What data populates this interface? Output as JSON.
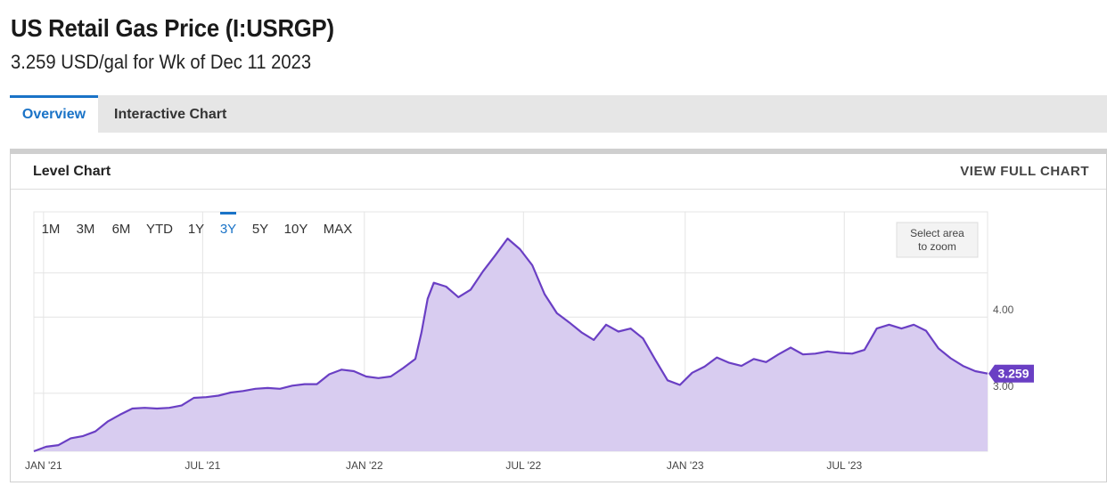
{
  "header": {
    "title": "US Retail Gas Price (I:USRGP)",
    "subtitle": "3.259 USD/gal for Wk of Dec 11 2023"
  },
  "tabs": [
    {
      "label": "Overview",
      "active": true
    },
    {
      "label": "Interactive Chart",
      "active": false
    }
  ],
  "card": {
    "title": "Level Chart",
    "view_full_label": "VIEW FULL CHART"
  },
  "range_buttons": [
    {
      "label": "1M",
      "active": false
    },
    {
      "label": "3M",
      "active": false
    },
    {
      "label": "6M",
      "active": false
    },
    {
      "label": "YTD",
      "active": false
    },
    {
      "label": "1Y",
      "active": false
    },
    {
      "label": "3Y",
      "active": true
    },
    {
      "label": "5Y",
      "active": false
    },
    {
      "label": "10Y",
      "active": false
    },
    {
      "label": "MAX",
      "active": false
    }
  ],
  "zoom_hint": {
    "line1": "Select area",
    "line2": "to zoom"
  },
  "colors": {
    "line": "#6a3fc4",
    "fill": "#d8ccf0",
    "accent": "#1a73c7",
    "badge": "#6a3fc4",
    "grid": "#e4e4e4"
  },
  "chart_data": {
    "type": "area",
    "title": "US Retail Gas Price (I:USRGP)",
    "unit": "USD/gal",
    "x_start": "2020-12-21",
    "x_end": "2023-12-11",
    "ylim": [
      2.24,
      5.38
    ],
    "y_ticks": [
      3.0,
      4.0
    ],
    "x_ticks": [
      {
        "date": "2021-01-01",
        "label": "JAN '21"
      },
      {
        "date": "2021-07-01",
        "label": "JUL '21"
      },
      {
        "date": "2022-01-01",
        "label": "JAN '22"
      },
      {
        "date": "2022-07-01",
        "label": "JUL '22"
      },
      {
        "date": "2023-01-01",
        "label": "JAN '23"
      },
      {
        "date": "2023-07-01",
        "label": "JUL '23"
      }
    ],
    "grid": true,
    "last_value_label": "3.259",
    "series": [
      {
        "values": [
          [
            "2020-12-21",
            2.24
          ],
          [
            "2021-01-04",
            2.3
          ],
          [
            "2021-01-18",
            2.32
          ],
          [
            "2021-02-01",
            2.41
          ],
          [
            "2021-02-15",
            2.44
          ],
          [
            "2021-03-01",
            2.5
          ],
          [
            "2021-03-15",
            2.63
          ],
          [
            "2021-03-29",
            2.72
          ],
          [
            "2021-04-12",
            2.8
          ],
          [
            "2021-04-26",
            2.81
          ],
          [
            "2021-05-10",
            2.8
          ],
          [
            "2021-05-24",
            2.81
          ],
          [
            "2021-06-07",
            2.84
          ],
          [
            "2021-06-21",
            2.94
          ],
          [
            "2021-07-05",
            2.95
          ],
          [
            "2021-07-19",
            2.97
          ],
          [
            "2021-08-02",
            3.01
          ],
          [
            "2021-08-16",
            3.03
          ],
          [
            "2021-08-30",
            3.06
          ],
          [
            "2021-09-13",
            3.07
          ],
          [
            "2021-09-27",
            3.06
          ],
          [
            "2021-10-11",
            3.1
          ],
          [
            "2021-10-25",
            3.12
          ],
          [
            "2021-11-08",
            3.12
          ],
          [
            "2021-11-22",
            3.25
          ],
          [
            "2021-12-06",
            3.31
          ],
          [
            "2021-12-20",
            3.29
          ],
          [
            "2022-01-03",
            3.22
          ],
          [
            "2022-01-17",
            3.2
          ],
          [
            "2022-01-31",
            3.22
          ],
          [
            "2022-02-14",
            3.33
          ],
          [
            "2022-02-28",
            3.45
          ],
          [
            "2022-03-07",
            3.8
          ],
          [
            "2022-03-14",
            4.24
          ],
          [
            "2022-03-21",
            4.45
          ],
          [
            "2022-04-04",
            4.4
          ],
          [
            "2022-04-18",
            4.26
          ],
          [
            "2022-05-02",
            4.36
          ],
          [
            "2022-05-16",
            4.6
          ],
          [
            "2022-05-30",
            4.81
          ],
          [
            "2022-06-13",
            5.03
          ],
          [
            "2022-06-27",
            4.89
          ],
          [
            "2022-07-11",
            4.68
          ],
          [
            "2022-07-25",
            4.3
          ],
          [
            "2022-08-08",
            4.05
          ],
          [
            "2022-08-22",
            3.93
          ],
          [
            "2022-09-05",
            3.8
          ],
          [
            "2022-09-19",
            3.7
          ],
          [
            "2022-10-03",
            3.9
          ],
          [
            "2022-10-17",
            3.81
          ],
          [
            "2022-10-31",
            3.85
          ],
          [
            "2022-11-14",
            3.72
          ],
          [
            "2022-11-28",
            3.44
          ],
          [
            "2022-12-12",
            3.17
          ],
          [
            "2022-12-26",
            3.11
          ],
          [
            "2023-01-09",
            3.27
          ],
          [
            "2023-01-23",
            3.35
          ],
          [
            "2023-02-06",
            3.47
          ],
          [
            "2023-02-20",
            3.4
          ],
          [
            "2023-03-06",
            3.36
          ],
          [
            "2023-03-20",
            3.45
          ],
          [
            "2023-04-03",
            3.41
          ],
          [
            "2023-04-17",
            3.51
          ],
          [
            "2023-05-01",
            3.6
          ],
          [
            "2023-05-15",
            3.51
          ],
          [
            "2023-05-29",
            3.52
          ],
          [
            "2023-06-12",
            3.55
          ],
          [
            "2023-06-26",
            3.53
          ],
          [
            "2023-07-10",
            3.52
          ],
          [
            "2023-07-24",
            3.57
          ],
          [
            "2023-08-07",
            3.85
          ],
          [
            "2023-08-21",
            3.9
          ],
          [
            "2023-09-04",
            3.85
          ],
          [
            "2023-09-18",
            3.9
          ],
          [
            "2023-10-02",
            3.82
          ],
          [
            "2023-10-16",
            3.59
          ],
          [
            "2023-10-30",
            3.46
          ],
          [
            "2023-11-13",
            3.36
          ],
          [
            "2023-11-27",
            3.29
          ],
          [
            "2023-12-11",
            3.259
          ]
        ]
      }
    ]
  }
}
